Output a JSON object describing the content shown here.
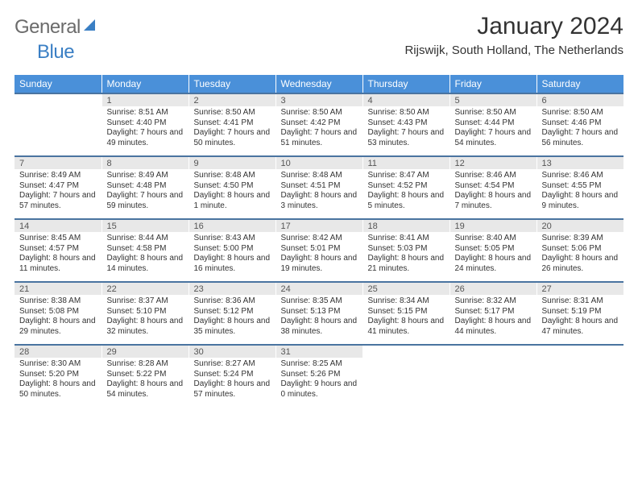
{
  "logo": {
    "text_gray": "General",
    "text_blue": "Blue"
  },
  "title": "January 2024",
  "location": "Rijswijk, South Holland, The Netherlands",
  "colors": {
    "header_bg": "#4a90d9",
    "header_text": "#ffffff",
    "daynum_bg": "#e8e8e8",
    "rule": "#4a74a0",
    "body_text": "#333333",
    "logo_gray": "#6b6b6b",
    "logo_blue": "#3a7fc4"
  },
  "weekdays": [
    "Sunday",
    "Monday",
    "Tuesday",
    "Wednesday",
    "Thursday",
    "Friday",
    "Saturday"
  ],
  "weeks": [
    {
      "nums": [
        "",
        "1",
        "2",
        "3",
        "4",
        "5",
        "6"
      ],
      "cells": [
        [],
        [
          "Sunrise: 8:51 AM",
          "Sunset: 4:40 PM",
          "Daylight: 7 hours and 49 minutes."
        ],
        [
          "Sunrise: 8:50 AM",
          "Sunset: 4:41 PM",
          "Daylight: 7 hours and 50 minutes."
        ],
        [
          "Sunrise: 8:50 AM",
          "Sunset: 4:42 PM",
          "Daylight: 7 hours and 51 minutes."
        ],
        [
          "Sunrise: 8:50 AM",
          "Sunset: 4:43 PM",
          "Daylight: 7 hours and 53 minutes."
        ],
        [
          "Sunrise: 8:50 AM",
          "Sunset: 4:44 PM",
          "Daylight: 7 hours and 54 minutes."
        ],
        [
          "Sunrise: 8:50 AM",
          "Sunset: 4:46 PM",
          "Daylight: 7 hours and 56 minutes."
        ]
      ]
    },
    {
      "nums": [
        "7",
        "8",
        "9",
        "10",
        "11",
        "12",
        "13"
      ],
      "cells": [
        [
          "Sunrise: 8:49 AM",
          "Sunset: 4:47 PM",
          "Daylight: 7 hours and 57 minutes."
        ],
        [
          "Sunrise: 8:49 AM",
          "Sunset: 4:48 PM",
          "Daylight: 7 hours and 59 minutes."
        ],
        [
          "Sunrise: 8:48 AM",
          "Sunset: 4:50 PM",
          "Daylight: 8 hours and 1 minute."
        ],
        [
          "Sunrise: 8:48 AM",
          "Sunset: 4:51 PM",
          "Daylight: 8 hours and 3 minutes."
        ],
        [
          "Sunrise: 8:47 AM",
          "Sunset: 4:52 PM",
          "Daylight: 8 hours and 5 minutes."
        ],
        [
          "Sunrise: 8:46 AM",
          "Sunset: 4:54 PM",
          "Daylight: 8 hours and 7 minutes."
        ],
        [
          "Sunrise: 8:46 AM",
          "Sunset: 4:55 PM",
          "Daylight: 8 hours and 9 minutes."
        ]
      ]
    },
    {
      "nums": [
        "14",
        "15",
        "16",
        "17",
        "18",
        "19",
        "20"
      ],
      "cells": [
        [
          "Sunrise: 8:45 AM",
          "Sunset: 4:57 PM",
          "Daylight: 8 hours and 11 minutes."
        ],
        [
          "Sunrise: 8:44 AM",
          "Sunset: 4:58 PM",
          "Daylight: 8 hours and 14 minutes."
        ],
        [
          "Sunrise: 8:43 AM",
          "Sunset: 5:00 PM",
          "Daylight: 8 hours and 16 minutes."
        ],
        [
          "Sunrise: 8:42 AM",
          "Sunset: 5:01 PM",
          "Daylight: 8 hours and 19 minutes."
        ],
        [
          "Sunrise: 8:41 AM",
          "Sunset: 5:03 PM",
          "Daylight: 8 hours and 21 minutes."
        ],
        [
          "Sunrise: 8:40 AM",
          "Sunset: 5:05 PM",
          "Daylight: 8 hours and 24 minutes."
        ],
        [
          "Sunrise: 8:39 AM",
          "Sunset: 5:06 PM",
          "Daylight: 8 hours and 26 minutes."
        ]
      ]
    },
    {
      "nums": [
        "21",
        "22",
        "23",
        "24",
        "25",
        "26",
        "27"
      ],
      "cells": [
        [
          "Sunrise: 8:38 AM",
          "Sunset: 5:08 PM",
          "Daylight: 8 hours and 29 minutes."
        ],
        [
          "Sunrise: 8:37 AM",
          "Sunset: 5:10 PM",
          "Daylight: 8 hours and 32 minutes."
        ],
        [
          "Sunrise: 8:36 AM",
          "Sunset: 5:12 PM",
          "Daylight: 8 hours and 35 minutes."
        ],
        [
          "Sunrise: 8:35 AM",
          "Sunset: 5:13 PM",
          "Daylight: 8 hours and 38 minutes."
        ],
        [
          "Sunrise: 8:34 AM",
          "Sunset: 5:15 PM",
          "Daylight: 8 hours and 41 minutes."
        ],
        [
          "Sunrise: 8:32 AM",
          "Sunset: 5:17 PM",
          "Daylight: 8 hours and 44 minutes."
        ],
        [
          "Sunrise: 8:31 AM",
          "Sunset: 5:19 PM",
          "Daylight: 8 hours and 47 minutes."
        ]
      ]
    },
    {
      "nums": [
        "28",
        "29",
        "30",
        "31",
        "",
        "",
        ""
      ],
      "cells": [
        [
          "Sunrise: 8:30 AM",
          "Sunset: 5:20 PM",
          "Daylight: 8 hours and 50 minutes."
        ],
        [
          "Sunrise: 8:28 AM",
          "Sunset: 5:22 PM",
          "Daylight: 8 hours and 54 minutes."
        ],
        [
          "Sunrise: 8:27 AM",
          "Sunset: 5:24 PM",
          "Daylight: 8 hours and 57 minutes."
        ],
        [
          "Sunrise: 8:25 AM",
          "Sunset: 5:26 PM",
          "Daylight: 9 hours and 0 minutes."
        ],
        [],
        [],
        []
      ]
    }
  ]
}
